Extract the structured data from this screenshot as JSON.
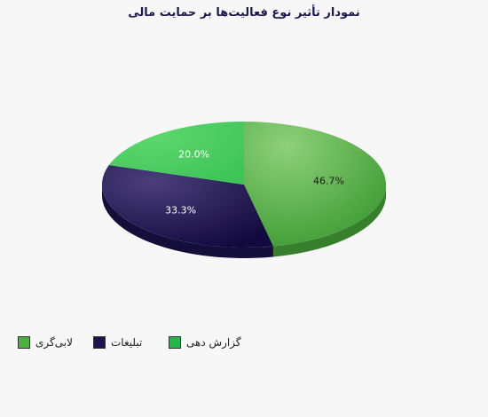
{
  "chart_data": {
    "type": "pie",
    "title": "نمودار تأثیر نوع فعالیت‌ها بر حمایت مالی",
    "slices": [
      {
        "name": "لابی‌گری",
        "value": 46.7,
        "label": "46.7%",
        "color": "#4caf3f"
      },
      {
        "name": "تبلیغات",
        "value": 33.3,
        "label": "33.3%",
        "color": "#1b1350"
      },
      {
        "name": "گزارش دهی",
        "value": 20.0,
        "label": "20.0%",
        "color": "#22b84a"
      }
    ],
    "legend_position": "bottom-left"
  }
}
